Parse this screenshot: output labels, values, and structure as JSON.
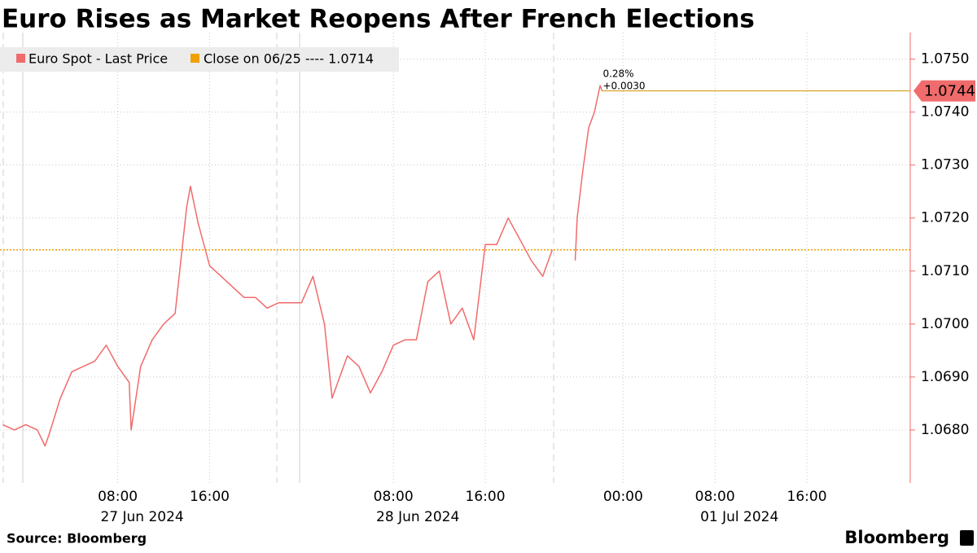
{
  "chart_data": {
    "type": "line",
    "title": "Euro Rises as Market Reopens After French Elections",
    "source": "Source: Bloomberg",
    "brand": "Bloomberg",
    "xlim": [
      "2024-06-26T21:45",
      "2024-07-02T01:00"
    ],
    "xbreak": [
      "2024-06-28T22:00",
      "2024-06-30T18:00"
    ],
    "xticks": [
      {
        "value": "2024-06-27T08:00",
        "label": "08:00"
      },
      {
        "value": "2024-06-27T16:00",
        "label": "16:00"
      },
      {
        "value": "2024-06-28T08:00",
        "label": "08:00"
      },
      {
        "value": "2024-06-28T16:00",
        "label": "16:00"
      },
      {
        "value": "2024-07-01T00:00",
        "label": "00:00"
      },
      {
        "value": "2024-07-01T08:00",
        "label": "08:00"
      },
      {
        "value": "2024-07-01T16:00",
        "label": "16:00"
      }
    ],
    "xtick_dates": [
      "27 Jun 2024",
      null,
      "28 Jun 2024",
      null,
      null,
      "01 Jul 2024",
      null
    ],
    "ylim": [
      1.067,
      1.0755
    ],
    "yticks": [
      {
        "value": 1.068,
        "label": "1.0680"
      },
      {
        "value": 1.069,
        "label": "1.0690"
      },
      {
        "value": 1.07,
        "label": "1.0700"
      },
      {
        "value": 1.071,
        "label": "1.0710"
      },
      {
        "value": 1.072,
        "label": "1.0720"
      },
      {
        "value": 1.073,
        "label": "1.0730"
      },
      {
        "value": 1.074,
        "label": "1.0740"
      },
      {
        "value": 1.075,
        "label": "1.0750"
      }
    ],
    "grid": true,
    "legend": "top-left",
    "series": [
      {
        "name": "Euro Spot - Last Price",
        "color": "#f06b6b",
        "x": [
          "2024-06-26T22:00",
          "2024-06-26T23:00",
          "2024-06-27T00:00",
          "2024-06-27T01:00",
          "2024-06-27T01:40",
          "2024-06-27T02:00",
          "2024-06-27T03:00",
          "2024-06-27T04:00",
          "2024-06-27T05:00",
          "2024-06-27T06:00",
          "2024-06-27T07:00",
          "2024-06-27T08:00",
          "2024-06-27T09:00",
          "2024-06-27T09:10",
          "2024-06-27T10:00",
          "2024-06-27T11:00",
          "2024-06-27T12:00",
          "2024-06-27T13:00",
          "2024-06-27T14:00",
          "2024-06-27T14:20",
          "2024-06-27T15:00",
          "2024-06-27T16:00",
          "2024-06-27T17:00",
          "2024-06-27T18:00",
          "2024-06-27T19:00",
          "2024-06-27T20:00",
          "2024-06-27T21:00",
          "2024-06-27T22:00",
          "2024-06-27T23:00",
          "2024-06-28T00:00",
          "2024-06-28T01:00",
          "2024-06-28T02:00",
          "2024-06-28T02:40",
          "2024-06-28T03:00",
          "2024-06-28T04:00",
          "2024-06-28T05:00",
          "2024-06-28T06:00",
          "2024-06-28T07:00",
          "2024-06-28T08:00",
          "2024-06-28T09:00",
          "2024-06-28T10:00",
          "2024-06-28T11:00",
          "2024-06-28T12:00",
          "2024-06-28T13:00",
          "2024-06-28T14:00",
          "2024-06-28T15:00",
          "2024-06-28T16:00",
          "2024-06-28T17:00",
          "2024-06-28T18:00",
          "2024-06-28T19:00",
          "2024-06-28T20:00",
          "2024-06-28T21:00",
          "2024-06-28T21:50",
          "2024-06-30T18:00",
          "2024-06-30T19:50",
          "2024-06-30T20:00",
          "2024-06-30T20:30",
          "2024-06-30T21:00",
          "2024-06-30T21:30",
          "2024-06-30T22:00",
          "2024-06-30T22:10"
        ],
        "values": [
          1.0681,
          1.068,
          1.0681,
          1.068,
          1.0677,
          1.0679,
          1.0686,
          1.0691,
          1.0692,
          1.0693,
          1.0696,
          1.0692,
          1.0689,
          1.068,
          1.0692,
          1.0697,
          1.07,
          1.0702,
          1.0722,
          1.0726,
          1.0719,
          1.0711,
          1.0709,
          1.0707,
          1.0705,
          1.0705,
          1.0703,
          1.0704,
          1.0704,
          1.0704,
          1.0709,
          1.07,
          1.0686,
          1.0688,
          1.0694,
          1.0692,
          1.0687,
          1.0691,
          1.0696,
          1.0697,
          1.0697,
          1.0708,
          1.071,
          1.07,
          1.0703,
          1.0697,
          1.0715,
          1.0715,
          1.072,
          1.0716,
          1.0712,
          1.0709,
          1.0714,
          null,
          1.0712,
          1.072,
          1.0729,
          1.0737,
          1.074,
          1.0745,
          1.0744
        ]
      }
    ],
    "reference_line": {
      "name": "Close on 06/25 ---- 1.0714",
      "value": 1.0714,
      "color": "#f0a000"
    },
    "last_price": 1.0744,
    "last_color": "#d4a017",
    "annotations": [
      "0.28%",
      "+0.0030"
    ]
  }
}
